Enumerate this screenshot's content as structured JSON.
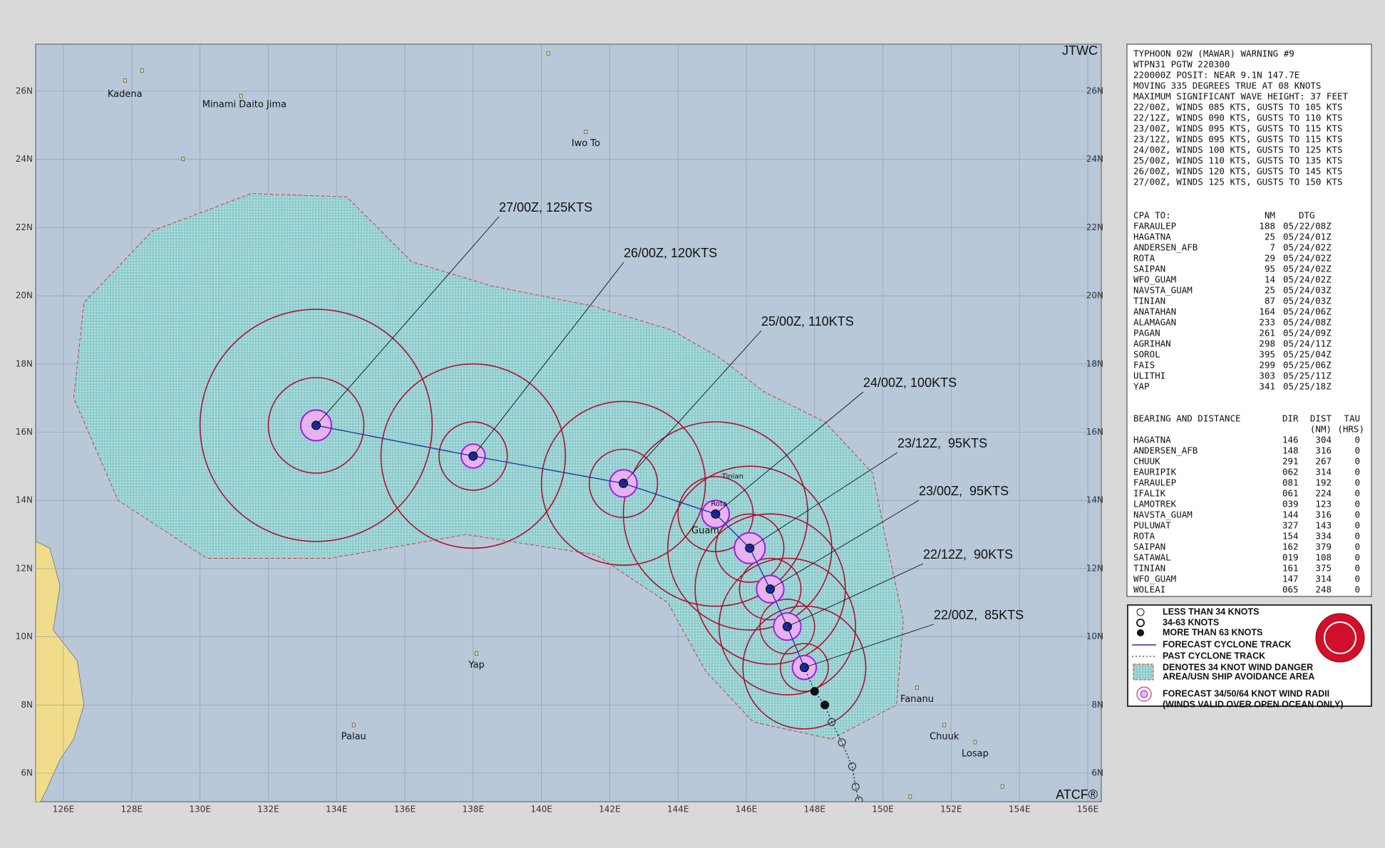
{
  "map": {
    "agency": "JTWC",
    "credit": "ATCF®",
    "lon_labels": [
      "126E",
      "128E",
      "130E",
      "132E",
      "134E",
      "136E",
      "138E",
      "140E",
      "142E",
      "144E",
      "146E",
      "148E",
      "150E",
      "152E",
      "154E",
      "156E"
    ],
    "lat_labels": [
      "6N",
      "8N",
      "10N",
      "12N",
      "14N",
      "16N",
      "18N",
      "20N",
      "22N",
      "24N",
      "26N"
    ],
    "places": [
      "Kadena",
      "Minami Daito Jima",
      "Iwo To",
      "Tinian",
      "Rota",
      "Guam",
      "Yap",
      "Palau",
      "Fananu",
      "Chuuk",
      "Losap"
    ],
    "forecast_labels": [
      "22/00Z,  85KTS",
      "22/12Z,  90KTS",
      "23/00Z,  95KTS",
      "23/12Z,  95KTS",
      "24/00Z, 100KTS",
      "25/00Z, 110KTS",
      "26/00Z, 120KTS",
      "27/00Z, 125KTS"
    ]
  },
  "panel": {
    "header": [
      "TYPHOON 02W (MAWAR) WARNING #9",
      "WTPN31 PGTW 220300",
      "220000Z POSIT: NEAR 9.1N 147.7E",
      "MOVING 335 DEGREES TRUE AT 08 KNOTS",
      "MAXIMUM SIGNIFICANT WAVE HEIGHT: 37 FEET",
      "22/00Z, WINDS 085 KTS, GUSTS TO 105 KTS",
      "22/12Z, WINDS 090 KTS, GUSTS TO 110 KTS",
      "23/00Z, WINDS 095 KTS, GUSTS TO 115 KTS",
      "23/12Z, WINDS 095 KTS, GUSTS TO 115 KTS",
      "24/00Z, WINDS 100 KTS, GUSTS TO 125 KTS",
      "25/00Z, WINDS 110 KTS, GUSTS TO 135 KTS",
      "26/00Z, WINDS 120 KTS, GUSTS TO 145 KTS",
      "27/00Z, WINDS 125 KTS, GUSTS TO 150 KTS"
    ],
    "cpa": {
      "title": "CPA TO:",
      "col_nm": "NM",
      "col_dtg": "DTG",
      "rows": [
        [
          "FARAULEP",
          "188",
          "05/22/08Z"
        ],
        [
          "HAGATNA",
          "25",
          "05/24/01Z"
        ],
        [
          "ANDERSEN_AFB",
          "7",
          "05/24/02Z"
        ],
        [
          "ROTA",
          "29",
          "05/24/02Z"
        ],
        [
          "SAIPAN",
          "95",
          "05/24/02Z"
        ],
        [
          "WFO_GUAM",
          "14",
          "05/24/02Z"
        ],
        [
          "NAVSTA_GUAM",
          "25",
          "05/24/03Z"
        ],
        [
          "TINIAN",
          "87",
          "05/24/03Z"
        ],
        [
          "ANATAHAN",
          "164",
          "05/24/06Z"
        ],
        [
          "ALAMAGAN",
          "233",
          "05/24/08Z"
        ],
        [
          "PAGAN",
          "261",
          "05/24/09Z"
        ],
        [
          "AGRIHAN",
          "298",
          "05/24/11Z"
        ],
        [
          "SOROL",
          "395",
          "05/25/04Z"
        ],
        [
          "FAIS",
          "299",
          "05/25/06Z"
        ],
        [
          "ULITHI",
          "303",
          "05/25/11Z"
        ],
        [
          "YAP",
          "341",
          "05/25/18Z"
        ]
      ]
    },
    "bearing": {
      "title": "BEARING AND DISTANCE",
      "col_dir": "DIR",
      "col_dist": "DIST",
      "col_dist_unit": "(NM)",
      "col_tau": "TAU",
      "col_tau_unit": "(HRS)",
      "rows": [
        [
          "HAGATNA",
          "146",
          "304",
          "0"
        ],
        [
          "ANDERSEN_AFB",
          "148",
          "316",
          "0"
        ],
        [
          "CHUUK",
          "291",
          "267",
          "0"
        ],
        [
          "EAURIPIK",
          "062",
          "314",
          "0"
        ],
        [
          "FARAULEP",
          "081",
          "192",
          "0"
        ],
        [
          "IFALIK",
          "061",
          "224",
          "0"
        ],
        [
          "LAMOTREK",
          "039",
          "123",
          "0"
        ],
        [
          "NAVSTA_GUAM",
          "144",
          "316",
          "0"
        ],
        [
          "PULUWAT",
          "327",
          "143",
          "0"
        ],
        [
          "ROTA",
          "154",
          "334",
          "0"
        ],
        [
          "SAIPAN",
          "162",
          "379",
          "0"
        ],
        [
          "SATAWAL",
          "019",
          "108",
          "0"
        ],
        [
          "TINIAN",
          "161",
          "375",
          "0"
        ],
        [
          "WFO_GUAM",
          "147",
          "314",
          "0"
        ],
        [
          "WOLEAI",
          "065",
          "248",
          "0"
        ]
      ]
    },
    "legend": [
      "LESS THAN 34 KNOTS",
      "34-63 KNOTS",
      "MORE THAN 63 KNOTS",
      "FORECAST CYCLONE TRACK",
      "PAST CYCLONE TRACK",
      "DENOTES 34 KNOT WIND DANGER",
      "AREA/USN SHIP AVOIDANCE AREA",
      "FORECAST 34/50/64 KNOT WIND RADII",
      "(WINDS VALID OVER OPEN OCEAN ONLY)"
    ]
  }
}
